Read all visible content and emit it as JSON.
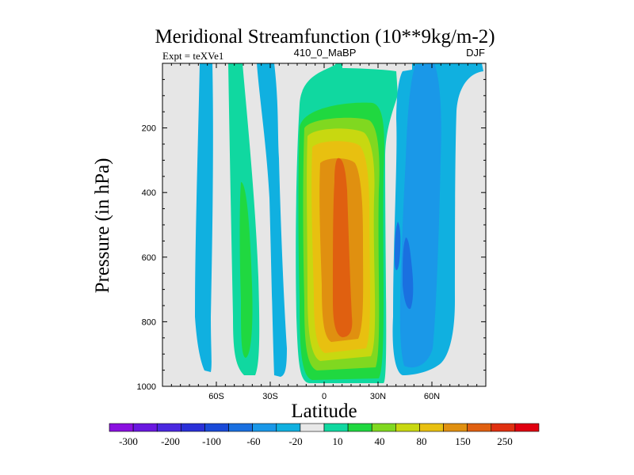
{
  "chart_data": {
    "type": "heatmap",
    "title": "Meridional Streamfunction (10**9kg/m-2)",
    "left_label": "Expt = teXVe1",
    "center_label": "410_0_MaBP",
    "right_label": "DJF",
    "xlabel": "Latitude",
    "ylabel": "Pressure (in hPa)",
    "xlim": [
      -90,
      90
    ],
    "ylim": [
      1000,
      0
    ],
    "x_ticks": [
      {
        "value": -60,
        "label": "60S"
      },
      {
        "value": -30,
        "label": "30S"
      },
      {
        "value": 0,
        "label": "0"
      },
      {
        "value": 30,
        "label": "30N"
      },
      {
        "value": 60,
        "label": "60N"
      }
    ],
    "y_ticks": [
      {
        "value": 200,
        "label": "200"
      },
      {
        "value": 400,
        "label": "400"
      },
      {
        "value": 600,
        "label": "600"
      },
      {
        "value": 800,
        "label": "800"
      },
      {
        "value": 1000,
        "label": "1000"
      }
    ],
    "missing_color": "#e6e6e6",
    "colorbar": {
      "colors": [
        "#8a10e0",
        "#6a18e0",
        "#4a28e0",
        "#2a30d8",
        "#1a4ad8",
        "#1a70e0",
        "#1a98e8",
        "#10b0e0",
        "#e8e8e8",
        "#10d8a0",
        "#20d840",
        "#80d820",
        "#c8d810",
        "#e8c010",
        "#e09010",
        "#e06010",
        "#e03010",
        "#e00010"
      ],
      "tick_labels": [
        "-300",
        "-200",
        "-100",
        "-60",
        "-20",
        "10",
        "40",
        "80",
        "150",
        "250"
      ]
    },
    "fields": [
      {
        "name": "Southern polar cell",
        "lat": [
          -67,
          -60
        ],
        "p_top": 0,
        "p_bottom": 950,
        "level": "-20"
      },
      {
        "name": "Southern Ferrel cell",
        "lat": [
          -50,
          -38
        ],
        "p_top": 0,
        "p_bottom": 970,
        "level": "40"
      },
      {
        "name": "Southern subtropical band",
        "lat": [
          -30,
          -22
        ],
        "p_top": 0,
        "p_bottom": 970,
        "level": "-20"
      },
      {
        "name": "Hadley cell",
        "lat": [
          -13,
          25
        ],
        "p_top": 40,
        "p_bottom": 990,
        "level": "150",
        "max_lat": 10,
        "max_p": 700
      },
      {
        "name": "Northern negative cell",
        "lat": [
          30,
          70
        ],
        "p_top": 0,
        "p_bottom": 970,
        "level": "-60",
        "max_lat": 48,
        "max_p": 580
      }
    ]
  }
}
